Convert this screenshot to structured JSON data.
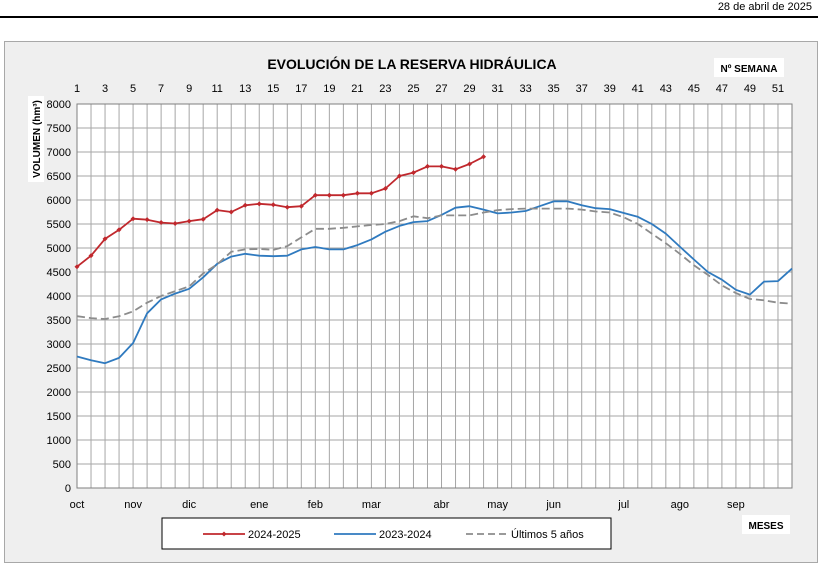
{
  "date": "28  de abril de 2025",
  "chart_data": {
    "type": "line",
    "title": "EVOLUCIÓN DE LA RESERVA HIDRÁULICA",
    "ylabel": "VOLUMEN (hm³)",
    "top_axis_label": "Nº SEMANA",
    "bottom_axis_label": "MESES",
    "ylim": [
      0,
      8000
    ],
    "yticks": [
      0,
      500,
      1000,
      1500,
      2000,
      2500,
      3000,
      3500,
      4000,
      4500,
      5000,
      5500,
      6000,
      6500,
      7000,
      7500,
      8000
    ],
    "xlim": [
      1,
      52
    ],
    "week_ticks": [
      1,
      3,
      5,
      7,
      9,
      11,
      13,
      15,
      17,
      19,
      21,
      23,
      25,
      27,
      29,
      31,
      33,
      35,
      37,
      39,
      41,
      43,
      45,
      47,
      49,
      51
    ],
    "months": [
      {
        "label": "oct",
        "week": 1
      },
      {
        "label": "nov",
        "week": 5
      },
      {
        "label": "dic",
        "week": 9
      },
      {
        "label": "ene",
        "week": 14
      },
      {
        "label": "feb",
        "week": 18
      },
      {
        "label": "mar",
        "week": 22
      },
      {
        "label": "abr",
        "week": 27
      },
      {
        "label": "may",
        "week": 31
      },
      {
        "label": "jun",
        "week": 35
      },
      {
        "label": "jul",
        "week": 40
      },
      {
        "label": "ago",
        "week": 44
      },
      {
        "label": "sep",
        "week": 48
      }
    ],
    "grid": true,
    "legend_position": "bottom",
    "series": [
      {
        "name": "2024-2025",
        "color": "#c0282d",
        "style": "solid-marker",
        "x": [
          1,
          2,
          3,
          4,
          5,
          6,
          7,
          8,
          9,
          10,
          11,
          12,
          13,
          14,
          15,
          16,
          17,
          18,
          19,
          20,
          21,
          22,
          23,
          24,
          25,
          26,
          27,
          28,
          29,
          30
        ],
        "values": [
          4610,
          4840,
          5190,
          5380,
          5610,
          5590,
          5530,
          5510,
          5560,
          5600,
          5790,
          5750,
          5890,
          5920,
          5900,
          5850,
          5870,
          6100,
          6100,
          6100,
          6140,
          6140,
          6240,
          6500,
          6570,
          6700,
          6700,
          6640,
          6750,
          6900
        ]
      },
      {
        "name": "2023-2024",
        "color": "#2f7abf",
        "style": "solid",
        "x": [
          1,
          2,
          3,
          4,
          5,
          6,
          7,
          8,
          9,
          10,
          11,
          12,
          13,
          14,
          15,
          16,
          17,
          18,
          19,
          20,
          21,
          22,
          23,
          24,
          25,
          26,
          27,
          28,
          29,
          30,
          31,
          32,
          33,
          34,
          35,
          36,
          37,
          38,
          39,
          40,
          41,
          42,
          43,
          44,
          45,
          46,
          47,
          48,
          49,
          50,
          51,
          52
        ],
        "values": [
          2740,
          2660,
          2600,
          2710,
          3020,
          3640,
          3930,
          4050,
          4150,
          4390,
          4670,
          4820,
          4880,
          4840,
          4830,
          4840,
          4970,
          5020,
          4970,
          4970,
          5060,
          5180,
          5340,
          5460,
          5540,
          5560,
          5690,
          5840,
          5870,
          5800,
          5720,
          5740,
          5770,
          5870,
          5970,
          5970,
          5890,
          5830,
          5810,
          5730,
          5650,
          5500,
          5300,
          5030,
          4760,
          4500,
          4340,
          4130,
          4030,
          4300,
          4310,
          4570
        ]
      },
      {
        "name": "Últimos 5 años",
        "color": "#8c8c8c",
        "style": "dashed",
        "x": [
          1,
          2,
          3,
          4,
          5,
          6,
          7,
          8,
          9,
          10,
          11,
          12,
          13,
          14,
          15,
          16,
          17,
          18,
          19,
          20,
          21,
          22,
          23,
          24,
          25,
          26,
          27,
          28,
          29,
          30,
          31,
          32,
          33,
          34,
          35,
          36,
          37,
          38,
          39,
          40,
          41,
          42,
          43,
          44,
          45,
          46,
          47,
          48,
          49,
          50,
          51,
          52
        ],
        "values": [
          3580,
          3540,
          3520,
          3580,
          3680,
          3860,
          4000,
          4100,
          4200,
          4470,
          4660,
          4920,
          4970,
          4980,
          4960,
          5040,
          5220,
          5400,
          5400,
          5420,
          5450,
          5480,
          5500,
          5560,
          5660,
          5620,
          5680,
          5680,
          5680,
          5740,
          5790,
          5810,
          5820,
          5820,
          5820,
          5820,
          5800,
          5760,
          5740,
          5640,
          5500,
          5300,
          5100,
          4880,
          4640,
          4440,
          4220,
          4060,
          3940,
          3910,
          3860,
          3840
        ]
      }
    ]
  }
}
